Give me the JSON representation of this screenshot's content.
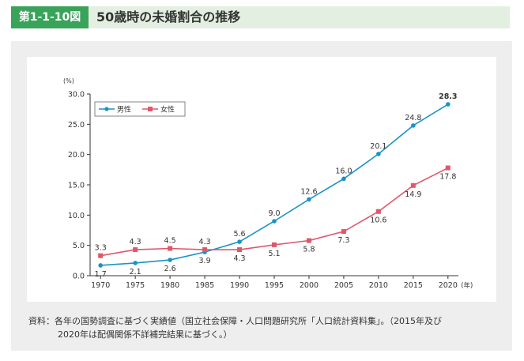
{
  "header": {
    "figure_number": "第1-1-10図",
    "title": "50歳時の未婚割合の推移"
  },
  "source_note": {
    "line1": "資料：各年の国勢調査に基づく実績値（国立社会保障・人口問題研究所「人口統計資料集」。（2015年及び",
    "line2": "2020年は配偶関係不詳補完結果に基づく。）"
  },
  "chart_data": {
    "type": "line",
    "y_unit": "(%)",
    "x_unit": "(年)",
    "ylim": [
      0,
      30
    ],
    "y_ticks": [
      "0.0",
      "5.0",
      "10.0",
      "15.0",
      "20.0",
      "25.0",
      "30.0"
    ],
    "categories": [
      "1970",
      "1975",
      "1980",
      "1985",
      "1990",
      "1995",
      "2000",
      "2005",
      "2010",
      "2015",
      "2020"
    ],
    "legend_position": "top-left",
    "series": [
      {
        "name": "男性",
        "color": "#1a93c6",
        "marker": "circle",
        "values": [
          1.7,
          2.1,
          2.6,
          3.9,
          5.6,
          9.0,
          12.6,
          16.0,
          20.1,
          24.8,
          28.3
        ],
        "labels": [
          "1.7",
          "2.1",
          "2.6",
          "3.9",
          "5.6",
          "9.0",
          "12.6",
          "16.0",
          "20.1",
          "24.8",
          "28.3"
        ]
      },
      {
        "name": "女性",
        "color": "#e0566a",
        "marker": "square",
        "values": [
          3.3,
          4.3,
          4.5,
          4.3,
          4.3,
          5.1,
          5.8,
          7.3,
          10.6,
          14.9,
          17.8
        ],
        "labels": [
          "3.3",
          "4.3",
          "4.5",
          "4.3",
          "4.3",
          "5.1",
          "5.8",
          "7.3",
          "10.6",
          "14.9",
          "17.8"
        ]
      }
    ]
  }
}
